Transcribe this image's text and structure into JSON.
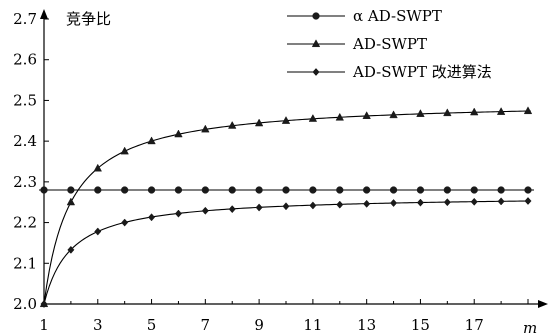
{
  "chart_data": {
    "type": "line",
    "ylabel": "竞争比",
    "xlabel": "m",
    "xlim": [
      1,
      19
    ],
    "ylim": [
      2.0,
      2.7
    ],
    "x_ticks": [
      "1",
      "3",
      "5",
      "7",
      "9",
      "11",
      "13",
      "15",
      "17"
    ],
    "y_ticks": [
      "2.0",
      "2.1",
      "2.2",
      "2.3",
      "2.4",
      "2.5",
      "2.6",
      "2.7"
    ],
    "grid": false,
    "legend_position": "top-right",
    "x": [
      1,
      2,
      3,
      4,
      5,
      6,
      7,
      8,
      9,
      10,
      11,
      12,
      13,
      14,
      15,
      16,
      17,
      18,
      19
    ],
    "series": [
      {
        "name": "α AD-SWPT",
        "marker": "circle",
        "values": [
          2.28,
          2.28,
          2.28,
          2.28,
          2.28,
          2.28,
          2.28,
          2.28,
          2.28,
          2.28,
          2.28,
          2.28,
          2.28,
          2.28,
          2.28,
          2.28,
          2.28,
          2.28,
          2.28
        ]
      },
      {
        "name": "AD-SWPT",
        "marker": "triangle",
        "values": [
          2.0,
          2.25,
          2.333,
          2.375,
          2.4,
          2.417,
          2.429,
          2.438,
          2.444,
          2.45,
          2.455,
          2.458,
          2.462,
          2.464,
          2.467,
          2.469,
          2.471,
          2.472,
          2.474
        ]
      },
      {
        "name": "AD-SWPT 改进算法",
        "marker": "diamond",
        "values": [
          2.0,
          2.133,
          2.178,
          2.2,
          2.213,
          2.222,
          2.229,
          2.233,
          2.237,
          2.24,
          2.242,
          2.244,
          2.246,
          2.248,
          2.249,
          2.25,
          2.251,
          2.252,
          2.253
        ]
      }
    ]
  }
}
